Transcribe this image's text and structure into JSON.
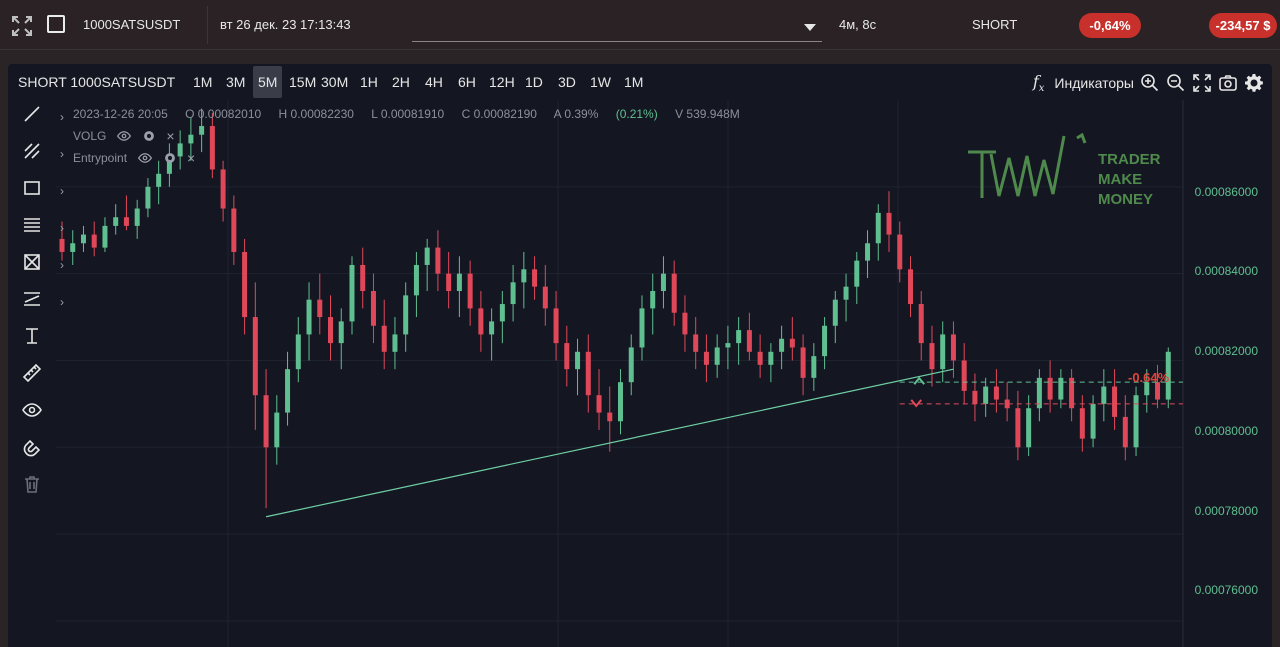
{
  "topbar": {
    "symbol": "1000SATSUSDT",
    "datetime": "вт 26 дек. 23 17:13:43",
    "duration": "4м, 8с",
    "side": "SHORT",
    "pnl_percent": "-0,64%",
    "pnl_value": "-234,57 $"
  },
  "chart": {
    "title": "SHORT 1000SATSUSDT",
    "timeframes": [
      "1M",
      "3M",
      "5M",
      "15M",
      "30M",
      "1H",
      "2H",
      "4H",
      "6H",
      "12H",
      "1D",
      "3D",
      "1W",
      "1M"
    ],
    "active_timeframe": "5M",
    "indicators_label": "Индикаторы",
    "ohlc": {
      "date": "2023-12-26 20:05",
      "open": "O 0.00082010",
      "high": "H 0.00082230",
      "low": "L 0.00081910",
      "close": "C 0.00082190",
      "amplitude": "A 0.39%",
      "change": "(0.21%)",
      "volume": "V 539.948M"
    },
    "legend": [
      "VOLG",
      "Entrypoint"
    ],
    "price_axis": [
      "0.00086000",
      "0.00084000",
      "0.00082000",
      "0.00080000",
      "0.00078000",
      "0.00076000"
    ],
    "position_label": "-0.64%",
    "logo_text": [
      "TRADER",
      "MAKE",
      "MONEY"
    ]
  },
  "colors": {
    "up": "#5fbf90",
    "down": "#e0485a",
    "pill": "#c8302c",
    "trendline": "#6fd0a4"
  },
  "chart_data": {
    "type": "candlestick",
    "ylim": [
      0.000754,
      0.00088
    ],
    "price_levels": [
      0.00086,
      0.00084,
      0.00082,
      0.0008,
      0.00078,
      0.00076
    ],
    "entry_price": 0.000815,
    "stop_price": 0.00081,
    "candles": [
      [
        0.000848,
        0.000852,
        0.000843,
        0.000845
      ],
      [
        0.000845,
        0.00085,
        0.000842,
        0.000847
      ],
      [
        0.000847,
        0.000851,
        0.000845,
        0.000849
      ],
      [
        0.000849,
        0.000852,
        0.000844,
        0.000846
      ],
      [
        0.000846,
        0.000853,
        0.000845,
        0.000851
      ],
      [
        0.000851,
        0.000856,
        0.000849,
        0.000853
      ],
      [
        0.000853,
        0.000858,
        0.00085,
        0.000851
      ],
      [
        0.000851,
        0.000857,
        0.000848,
        0.000855
      ],
      [
        0.000855,
        0.000862,
        0.000853,
        0.00086
      ],
      [
        0.00086,
        0.000866,
        0.000856,
        0.000863
      ],
      [
        0.000863,
        0.00087,
        0.00086,
        0.000867
      ],
      [
        0.000867,
        0.000873,
        0.000864,
        0.00087
      ],
      [
        0.00087,
        0.000876,
        0.000866,
        0.000872
      ],
      [
        0.000872,
        0.000878,
        0.000868,
        0.000874
      ],
      [
        0.000874,
        0.000877,
        0.000862,
        0.000864
      ],
      [
        0.000864,
        0.000866,
        0.000852,
        0.000855
      ],
      [
        0.000855,
        0.000858,
        0.000842,
        0.000845
      ],
      [
        0.000845,
        0.000848,
        0.000826,
        0.00083
      ],
      [
        0.00083,
        0.000838,
        0.000804,
        0.000812
      ],
      [
        0.000812,
        0.000818,
        0.000786,
        0.0008
      ],
      [
        0.0008,
        0.000812,
        0.000796,
        0.000808
      ],
      [
        0.000808,
        0.000822,
        0.000805,
        0.000818
      ],
      [
        0.000818,
        0.00083,
        0.000815,
        0.000826
      ],
      [
        0.000826,
        0.000838,
        0.00082,
        0.000834
      ],
      [
        0.000834,
        0.00084,
        0.000826,
        0.00083
      ],
      [
        0.00083,
        0.000835,
        0.00082,
        0.000824
      ],
      [
        0.000824,
        0.000832,
        0.000818,
        0.000829
      ],
      [
        0.000829,
        0.000844,
        0.000826,
        0.000842
      ],
      [
        0.000842,
        0.000846,
        0.000832,
        0.000836
      ],
      [
        0.000836,
        0.00084,
        0.000824,
        0.000828
      ],
      [
        0.000828,
        0.000834,
        0.000818,
        0.000822
      ],
      [
        0.000822,
        0.00083,
        0.000818,
        0.000826
      ],
      [
        0.000826,
        0.000838,
        0.000822,
        0.000835
      ],
      [
        0.000835,
        0.000845,
        0.00083,
        0.000842
      ],
      [
        0.000842,
        0.000848,
        0.000836,
        0.000846
      ],
      [
        0.000846,
        0.00085,
        0.000836,
        0.00084
      ],
      [
        0.00084,
        0.000845,
        0.000832,
        0.000836
      ],
      [
        0.000836,
        0.000844,
        0.00083,
        0.00084
      ],
      [
        0.00084,
        0.000843,
        0.000828,
        0.000832
      ],
      [
        0.000832,
        0.000836,
        0.000822,
        0.000826
      ],
      [
        0.000826,
        0.000832,
        0.00082,
        0.000829
      ],
      [
        0.000829,
        0.000836,
        0.000824,
        0.000833
      ],
      [
        0.000833,
        0.000842,
        0.000829,
        0.000838
      ],
      [
        0.000838,
        0.000845,
        0.000832,
        0.000841
      ],
      [
        0.000841,
        0.000844,
        0.000834,
        0.000837
      ],
      [
        0.000837,
        0.000842,
        0.000828,
        0.000832
      ],
      [
        0.000832,
        0.000836,
        0.00082,
        0.000824
      ],
      [
        0.000824,
        0.000828,
        0.000814,
        0.000818
      ],
      [
        0.000818,
        0.000825,
        0.000812,
        0.000822
      ],
      [
        0.000822,
        0.000826,
        0.000808,
        0.000812
      ],
      [
        0.000812,
        0.000818,
        0.000804,
        0.000808
      ],
      [
        0.000808,
        0.000814,
        0.000799,
        0.000806
      ],
      [
        0.000806,
        0.000818,
        0.000803,
        0.000815
      ],
      [
        0.000815,
        0.000826,
        0.000812,
        0.000823
      ],
      [
        0.000823,
        0.000835,
        0.00082,
        0.000832
      ],
      [
        0.000832,
        0.00084,
        0.000826,
        0.000836
      ],
      [
        0.000836,
        0.000844,
        0.000832,
        0.00084
      ],
      [
        0.00084,
        0.000843,
        0.000828,
        0.000831
      ],
      [
        0.000831,
        0.000835,
        0.000822,
        0.000826
      ],
      [
        0.000826,
        0.00083,
        0.000818,
        0.000822
      ],
      [
        0.000822,
        0.000826,
        0.000815,
        0.000819
      ],
      [
        0.000819,
        0.000826,
        0.000816,
        0.000823
      ],
      [
        0.000823,
        0.000828,
        0.000818,
        0.000824
      ],
      [
        0.000824,
        0.00083,
        0.000819,
        0.000827
      ],
      [
        0.000827,
        0.000831,
        0.00082,
        0.000822
      ],
      [
        0.000822,
        0.000826,
        0.000816,
        0.000819
      ],
      [
        0.000819,
        0.000824,
        0.000815,
        0.000822
      ],
      [
        0.000822,
        0.000828,
        0.000818,
        0.000825
      ],
      [
        0.000825,
        0.00083,
        0.00082,
        0.000823
      ],
      [
        0.000823,
        0.000826,
        0.000812,
        0.000816
      ],
      [
        0.000816,
        0.000824,
        0.000813,
        0.000821
      ],
      [
        0.000821,
        0.00083,
        0.000818,
        0.000828
      ],
      [
        0.000828,
        0.000836,
        0.000824,
        0.000834
      ],
      [
        0.000834,
        0.00084,
        0.000829,
        0.000837
      ],
      [
        0.000837,
        0.000845,
        0.000833,
        0.000843
      ],
      [
        0.000843,
        0.00085,
        0.000839,
        0.000847
      ],
      [
        0.000847,
        0.000856,
        0.000843,
        0.000854
      ],
      [
        0.000854,
        0.000859,
        0.000845,
        0.000849
      ],
      [
        0.000849,
        0.000852,
        0.000838,
        0.000841
      ],
      [
        0.000841,
        0.000844,
        0.00083,
        0.000833
      ],
      [
        0.000833,
        0.000836,
        0.00082,
        0.000824
      ],
      [
        0.000824,
        0.000828,
        0.000814,
        0.000818
      ],
      [
        0.000818,
        0.000829,
        0.000815,
        0.000826
      ],
      [
        0.000826,
        0.000829,
        0.000816,
        0.00082
      ],
      [
        0.00082,
        0.000824,
        0.00081,
        0.000813
      ],
      [
        0.000813,
        0.000817,
        0.000806,
        0.00081
      ],
      [
        0.00081,
        0.000816,
        0.000807,
        0.000814
      ],
      [
        0.000814,
        0.000818,
        0.000808,
        0.000811
      ],
      [
        0.000811,
        0.000815,
        0.000806,
        0.000809
      ],
      [
        0.000809,
        0.000813,
        0.000797,
        0.0008
      ],
      [
        0.0008,
        0.000812,
        0.000798,
        0.000809
      ],
      [
        0.000809,
        0.000818,
        0.000806,
        0.000816
      ],
      [
        0.000816,
        0.00082,
        0.000808,
        0.000811
      ],
      [
        0.000811,
        0.000818,
        0.000809,
        0.000816
      ],
      [
        0.000816,
        0.000818,
        0.000806,
        0.000809
      ],
      [
        0.000809,
        0.000812,
        0.000799,
        0.000802
      ],
      [
        0.000802,
        0.000812,
        0.0008,
        0.00081
      ],
      [
        0.00081,
        0.000818,
        0.000806,
        0.000814
      ],
      [
        0.000814,
        0.000818,
        0.000804,
        0.000807
      ],
      [
        0.000807,
        0.000812,
        0.000797,
        0.0008
      ],
      [
        0.0008,
        0.000814,
        0.000798,
        0.000812
      ],
      [
        0.000812,
        0.000818,
        0.000808,
        0.000815
      ],
      [
        0.000815,
        0.000819,
        0.000809,
        0.000811
      ],
      [
        0.000811,
        0.000823,
        0.000809,
        0.000822
      ]
    ],
    "trendline": {
      "start_index": 19,
      "start_price": 0.000784,
      "end_index": 83,
      "end_price": 0.000818
    }
  }
}
